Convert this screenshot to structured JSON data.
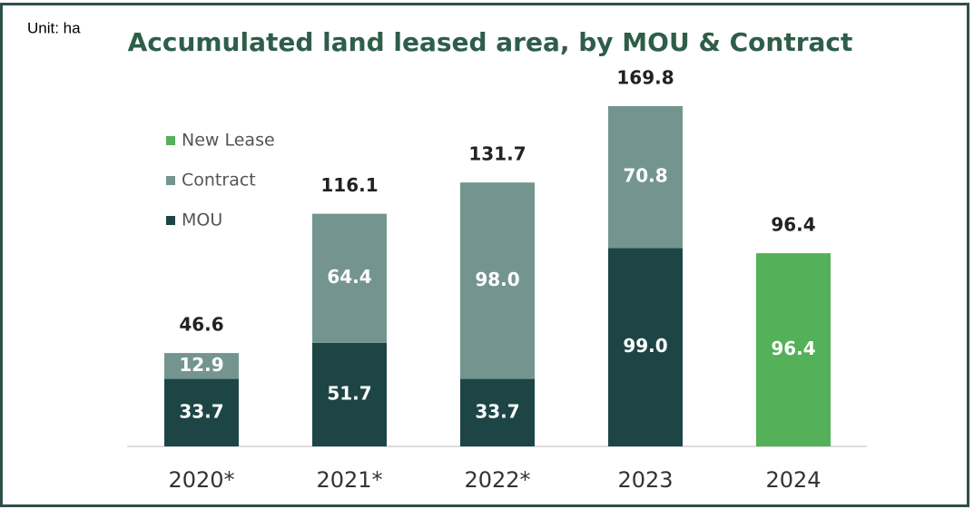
{
  "chart_data": {
    "type": "stacked-bar",
    "title": "Accumulated land leased area, by MOU & Contract",
    "unit_label": "Unit: ha",
    "categories": [
      "2020*",
      "2021*",
      "2022*",
      "2023",
      "2024"
    ],
    "series": [
      {
        "name": "MOU",
        "color": "#1e4545",
        "values": [
          33.7,
          51.7,
          33.7,
          99.0,
          null
        ],
        "value_labels": [
          "33.7",
          "51.7",
          "33.7",
          "99.0",
          null
        ]
      },
      {
        "name": "Contract",
        "color": "#74958f",
        "values": [
          12.9,
          64.4,
          98.0,
          70.8,
          null
        ],
        "value_labels": [
          "12.9",
          "64.4",
          "98.0",
          "70.8",
          null
        ]
      },
      {
        "name": "New Lease",
        "color": "#55b05a",
        "values": [
          null,
          null,
          null,
          null,
          96.4
        ],
        "value_labels": [
          null,
          null,
          null,
          null,
          "96.4"
        ]
      }
    ],
    "totals": [
      46.6,
      116.1,
      131.7,
      169.8,
      96.4
    ]
  }
}
